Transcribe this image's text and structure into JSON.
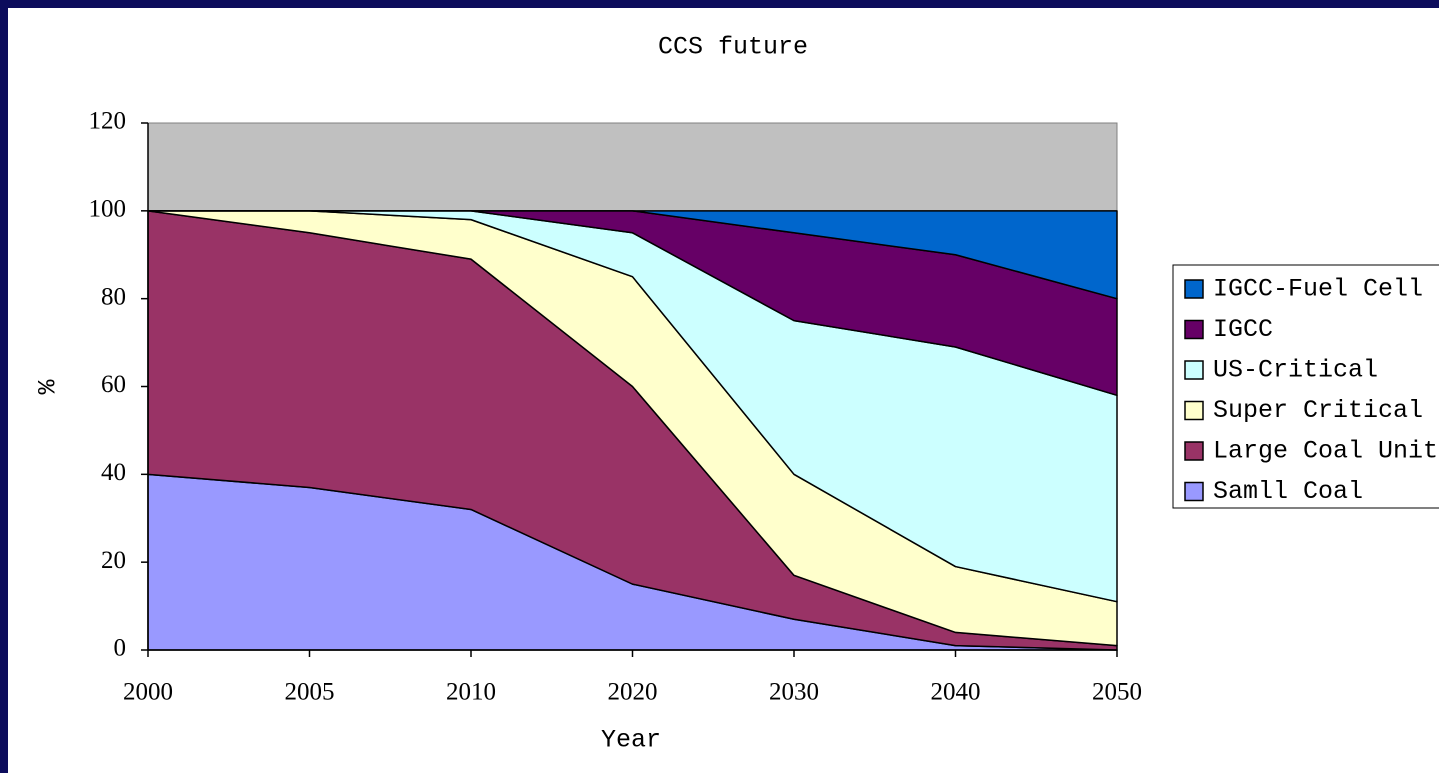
{
  "chart_data": {
    "type": "stacked_area",
    "title": "CCS future",
    "x_label": "Year",
    "y_label": "%",
    "categories": [
      "2000",
      "2005",
      "2010",
      "2020",
      "2030",
      "2040",
      "2050"
    ],
    "series": [
      {
        "name": "Samll Coal",
        "color": "#9999ff",
        "values": [
          40,
          37,
          32,
          15,
          7,
          1,
          0
        ]
      },
      {
        "name": "Large Coal Unit",
        "color": "#993366",
        "values": [
          60,
          58,
          57,
          45,
          10,
          3,
          1
        ]
      },
      {
        "name": "Super Critical",
        "color": "#ffffcc",
        "values": [
          0,
          5,
          9,
          25,
          23,
          15,
          10
        ]
      },
      {
        "name": "US-Critical",
        "color": "#ccffff",
        "values": [
          0,
          0,
          2,
          10,
          35,
          50,
          47
        ]
      },
      {
        "name": "IGCC",
        "color": "#660066",
        "values": [
          0,
          0,
          0,
          5,
          20,
          21,
          22
        ]
      },
      {
        "name": "IGCC-Fuel Cell",
        "color": "#0066cc",
        "values": [
          0,
          0,
          0,
          0,
          5,
          10,
          20
        ]
      }
    ],
    "ylim": [
      0,
      120
    ],
    "yticks": [
      0,
      20,
      40,
      60,
      80,
      100,
      120
    ],
    "plot_background": "#c0c0c0",
    "legend": "right"
  }
}
